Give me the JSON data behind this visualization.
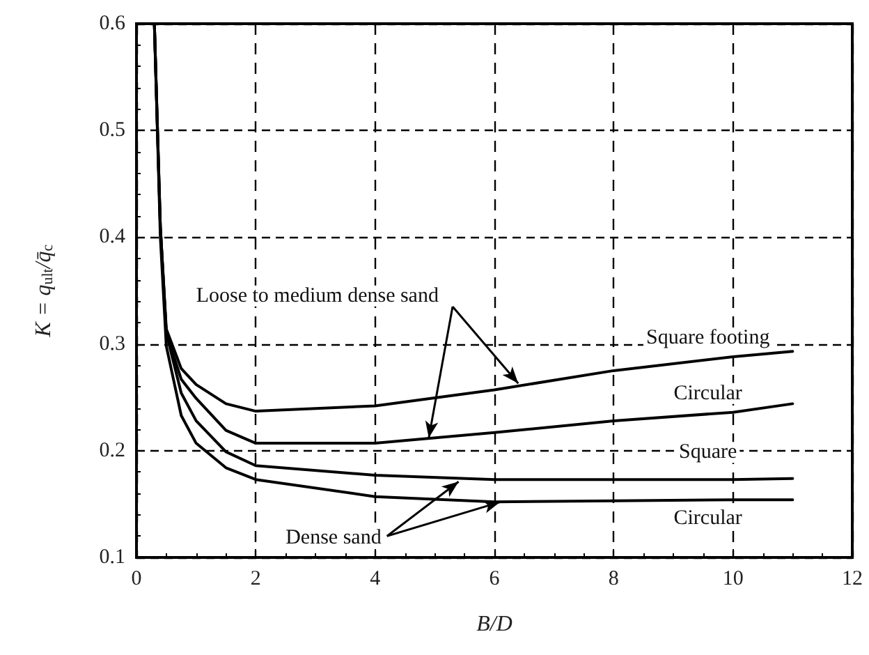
{
  "chart_data": {
    "type": "line",
    "xlabel": "B/D",
    "ylabel": "K = q$_{ult}$/q̄$_{c}$",
    "x": [
      0.3,
      0.4,
      0.5,
      0.75,
      1,
      1.5,
      2,
      4,
      6,
      8,
      10,
      11
    ],
    "series": [
      {
        "name": "Square footing",
        "color": "#000000",
        "values": [
          0.6,
          0.41,
          0.314,
          0.277,
          0.262,
          0.244,
          0.237,
          0.242,
          0.257,
          0.275,
          0.288,
          0.293
        ]
      },
      {
        "name": "Circular",
        "color": "#000000",
        "values": [
          0.6,
          0.41,
          0.31,
          0.267,
          0.249,
          0.219,
          0.207,
          0.207,
          0.217,
          0.228,
          0.236,
          0.244
        ]
      },
      {
        "name": "Square",
        "color": "#000000",
        "values": [
          0.6,
          0.41,
          0.31,
          0.254,
          0.228,
          0.199,
          0.186,
          0.177,
          0.173,
          0.173,
          0.173,
          0.174
        ]
      },
      {
        "name": "Circular",
        "color": "#000000",
        "values": [
          0.6,
          0.4,
          0.298,
          0.233,
          0.207,
          0.184,
          0.173,
          0.157,
          0.152,
          0.153,
          0.154,
          0.154
        ]
      }
    ],
    "annotations": [
      {
        "text": "Loose to medium dense sand",
        "x": 6.4,
        "y": 0.263
      },
      {
        "text": "Dense sand",
        "x": 6.1,
        "y": 0.152
      }
    ],
    "xlim": [
      0,
      12
    ],
    "xticks": [
      0,
      2,
      4,
      6,
      8,
      10,
      12
    ],
    "ylim": [
      0.1,
      0.6
    ],
    "yticks": [
      0.1,
      0.2,
      0.3,
      0.4,
      0.5,
      0.6
    ],
    "grid": true,
    "legend": false,
    "marker": "none",
    "line_style": "solid"
  }
}
